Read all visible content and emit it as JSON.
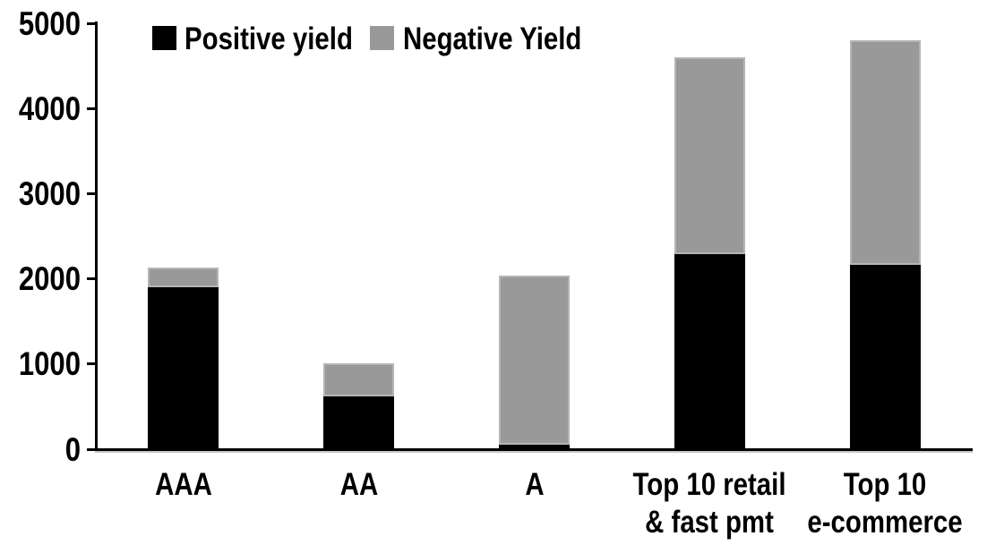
{
  "chart_data": {
    "type": "bar",
    "stacked": true,
    "title": "",
    "xlabel": "",
    "ylabel": "",
    "categories": [
      "AAA",
      "AA",
      "A",
      "Top 10 retail\n& fast pmt",
      "Top 10\ne-commerce"
    ],
    "series": [
      {
        "name": "Positive yield",
        "color": "#000000",
        "values": [
          1900,
          620,
          50,
          2290,
          2160
        ]
      },
      {
        "name": "Negative Yield",
        "color": "#999999",
        "values": [
          230,
          390,
          1990,
          2310,
          2640
        ]
      }
    ],
    "totals": [
      2130,
      1010,
      2040,
      4600,
      4800
    ],
    "ylim": [
      0,
      5000
    ],
    "y_ticks": [
      0,
      1000,
      2000,
      3000,
      4000,
      5000
    ],
    "legend_position": "top",
    "grid": false,
    "axis_color": "#000000",
    "background_color": "#ffffff"
  }
}
